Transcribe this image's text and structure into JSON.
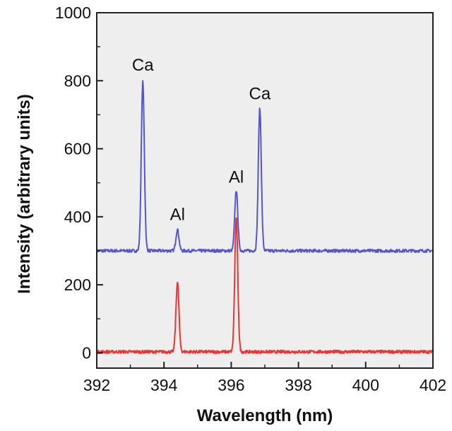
{
  "chart_data": {
    "type": "line",
    "title": "",
    "xlabel": "Wavelength (nm)",
    "ylabel": "Intensity (arbitrary units)",
    "xlim": [
      392,
      402
    ],
    "ylim": [
      -45,
      1000
    ],
    "xticks": [
      "392",
      "394",
      "396",
      "398",
      "400",
      "402"
    ],
    "yticks": [
      "0",
      "200",
      "400",
      "600",
      "800",
      "1000"
    ],
    "grid": false,
    "legend": "none",
    "series": [
      {
        "color": "#5555cc",
        "baseline": 300,
        "peaks": [
          {
            "x": 393.37,
            "y": 798
          },
          {
            "x": 394.4,
            "y": 362
          },
          {
            "x": 396.15,
            "y": 478
          },
          {
            "x": 396.85,
            "y": 718
          }
        ]
      },
      {
        "color": "#ee3333",
        "baseline": 3,
        "peaks": [
          {
            "x": 394.4,
            "y": 207
          },
          {
            "x": 396.15,
            "y": 395
          }
        ]
      }
    ],
    "annotations": [
      {
        "text": "Ca",
        "x": 393.37,
        "y": 830
      },
      {
        "text": "Al",
        "x": 394.4,
        "y": 390
      },
      {
        "text": "Al",
        "x": 396.15,
        "y": 500
      },
      {
        "text": "Ca",
        "x": 396.85,
        "y": 745
      }
    ]
  }
}
